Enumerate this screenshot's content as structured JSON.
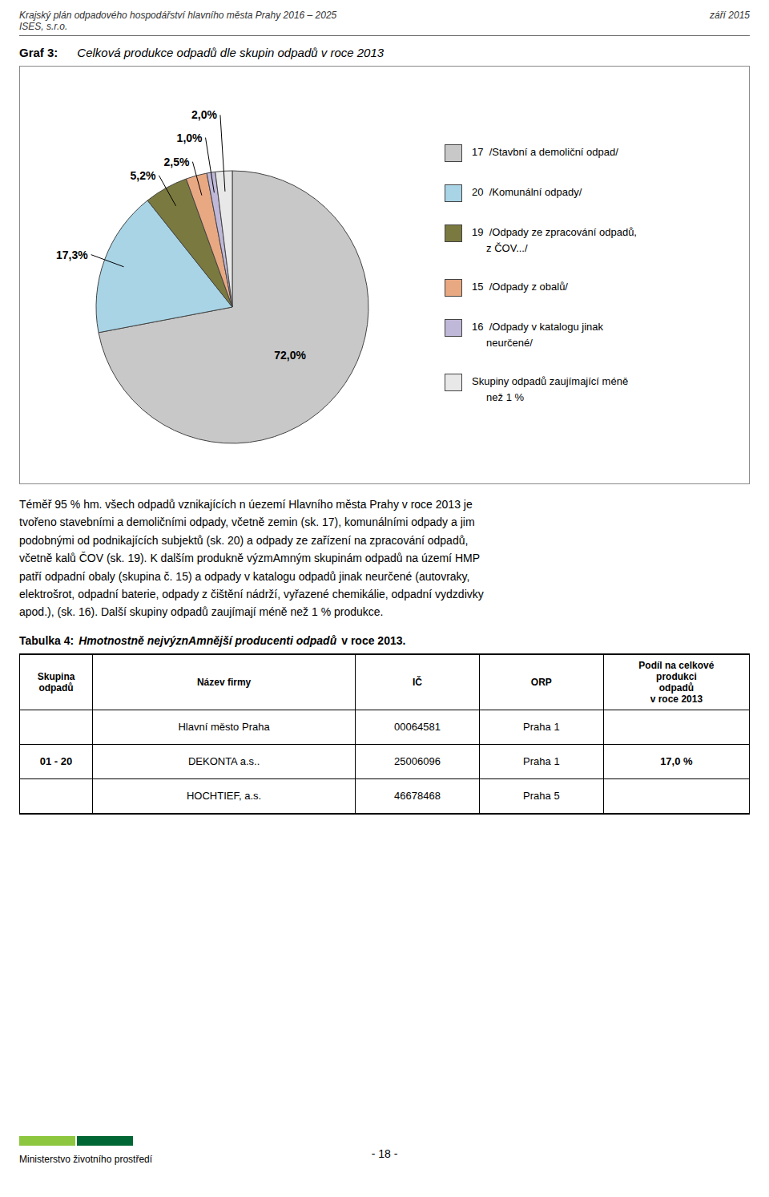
{
  "chart_data": {
    "type": "pie",
    "title_prefix": "Graf 3:",
    "title": "Celková produkce odpadů dle skupin odpadů v roce 2013",
    "categories": [
      "17  /Stavbní a demoliční odpad/",
      "20  /Komunální odpady/",
      "19  /Odpady ze zpracování odpadů,\n     z ČOV.../",
      "15  /Odpady z obalů/",
      "16  /Odpady v katalogu jinak\n     neurčené/",
      "Skupiny odpadů zaujímající méně\n     než 1 %"
    ],
    "values": [
      72.0,
      17.3,
      5.2,
      2.5,
      1.0,
      2.0
    ],
    "value_labels": [
      "72,0%",
      "17,3%",
      "5,2%",
      "2,5%",
      "1,0%",
      "2,0%"
    ],
    "colors": [
      "#c8c8c8",
      "#a8d4e6",
      "#7a7a40",
      "#e8a882",
      "#c0b8d8",
      "#e8e8e8"
    ],
    "data_labels": true,
    "legend": "right"
  },
  "page": {
    "header_left": "Krajský plán odpadového hospodářství hlavního města Prahy 2016 – 2025",
    "header_right": "září 2015",
    "header_sub": "ISES, s.r.o.",
    "paragraph": "Téměř 95 % hm. všech odpadů vznikajících n úezemí Hlavního města Prahy v roce 2013 je\ntvořeno stavebními a demoličními odpady, včetně zemin (sk. 17), komunálními odpady a jim\npodobnými od podnikajících subjektů (sk. 20) a odpady ze zařízení na zpracování odpadů,\nvčetně kalů ČOV (sk. 19). K dalším produkně výzmAmným skupinám odpadů na území HMP\npatří odpadní obaly (skupina č. 15) a odpady v katalogu odpadů jinak neurčené (autovraky,\nelektrošrot, odpadní baterie, odpady z čištění nádrží, vyřazené chemikálie, odpadní vydzdivky\napod.), (sk. 16). Další skupiny odpadů zaujímají méně než 1 % produkce.",
    "table_title": [
      "Tabulka 4:",
      "Hmotnostně nejvýznAmnější producenti odpadů",
      "v roce 2013."
    ],
    "table": {
      "headers": [
        "Skupina\nodpadů",
        "Název firmy",
        "IČ",
        "ORP",
        "Podíl na celkové\nprodukci\nodpadů\nv roce 2013"
      ],
      "rows": [
        [
          null,
          "Hlavní město Praha",
          "00064581",
          "Praha 1",
          null
        ],
        [
          "01 - 20",
          "DEKONTA a.s..",
          "25006096",
          "Praha 1",
          "17,0 %"
        ],
        [
          null,
          "HOCHTIEF, a.s.",
          "46678468",
          "Praha 5",
          null
        ]
      ]
    },
    "footer_text": "Ministerstvo životního prostředí",
    "footer_page": "- 18 -"
  }
}
